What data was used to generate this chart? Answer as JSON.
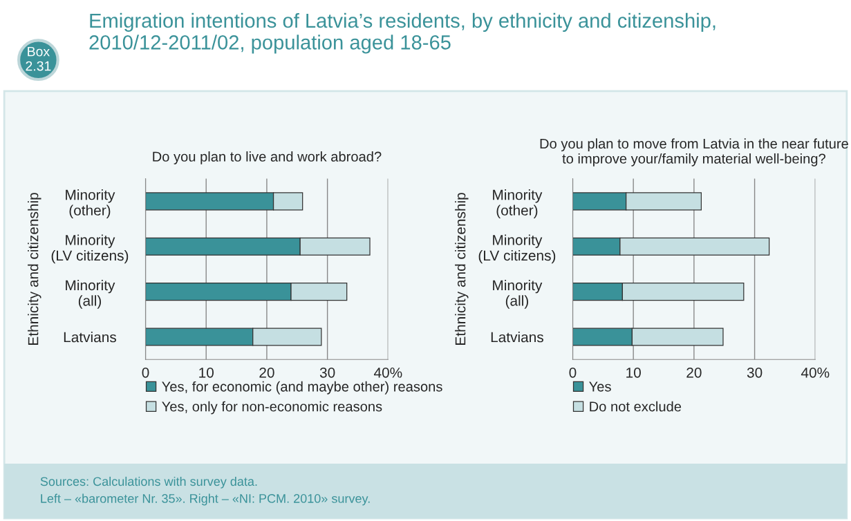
{
  "chart_data": [
    {
      "type": "bar",
      "orientation": "horizontal",
      "stacked": true,
      "title": "Emigration intentions of Latvia’s residents, by ethnicity and citizenship,\n2010/12-2011/02, population aged 18-65",
      "subtitle": "Do you plan to live and work abroad?",
      "ylabel": "Ethnicity and citizenship",
      "categories": [
        "Minority\n(other)",
        "Minority\n(LV citizens)",
        "Minority\n(all)",
        "Latvians"
      ],
      "series": [
        {
          "name": "Yes, for economic (and maybe other) reasons",
          "color": "#3a9299",
          "values": [
            21.1,
            25.5,
            24.0,
            17.7
          ]
        },
        {
          "name": "Yes, only for non-economic reasons",
          "color": "#c5dfe2",
          "values": [
            4.8,
            11.5,
            9.2,
            11.3
          ]
        }
      ],
      "xlim": [
        0,
        40
      ],
      "xticks": [
        0,
        10,
        20,
        30,
        {
          "value": 40,
          "label": "40%"
        }
      ],
      "grid": "x",
      "legend": "bottom",
      "annotations": [
        "Box\n2.31",
        "Sources: Calculations with survey data.\nLeft – «barometer Nr. 35». Right – «NI: PCM. 2010» survey."
      ]
    },
    {
      "type": "bar",
      "orientation": "horizontal",
      "stacked": true,
      "subtitle": "Do you plan to move from Latvia in the near future\nto improve your/family material well-being?",
      "ylabel": "Ethnicity and citizenship",
      "categories": [
        "Minority\n(other)",
        "Minority\n(LV citizens)",
        "Minority\n(all)",
        "Latvians"
      ],
      "series": [
        {
          "name": "Yes",
          "color": "#3a9299",
          "values": [
            8.8,
            7.8,
            8.2,
            9.8
          ]
        },
        {
          "name": "Do not exclude",
          "color": "#c5dfe2",
          "values": [
            12.4,
            24.6,
            20.0,
            15.0
          ]
        }
      ],
      "xlim": [
        0,
        40
      ],
      "xticks": [
        0,
        10,
        20,
        30,
        {
          "value": 40,
          "label": "40%"
        }
      ],
      "grid": "x",
      "legend": "bottom"
    }
  ]
}
